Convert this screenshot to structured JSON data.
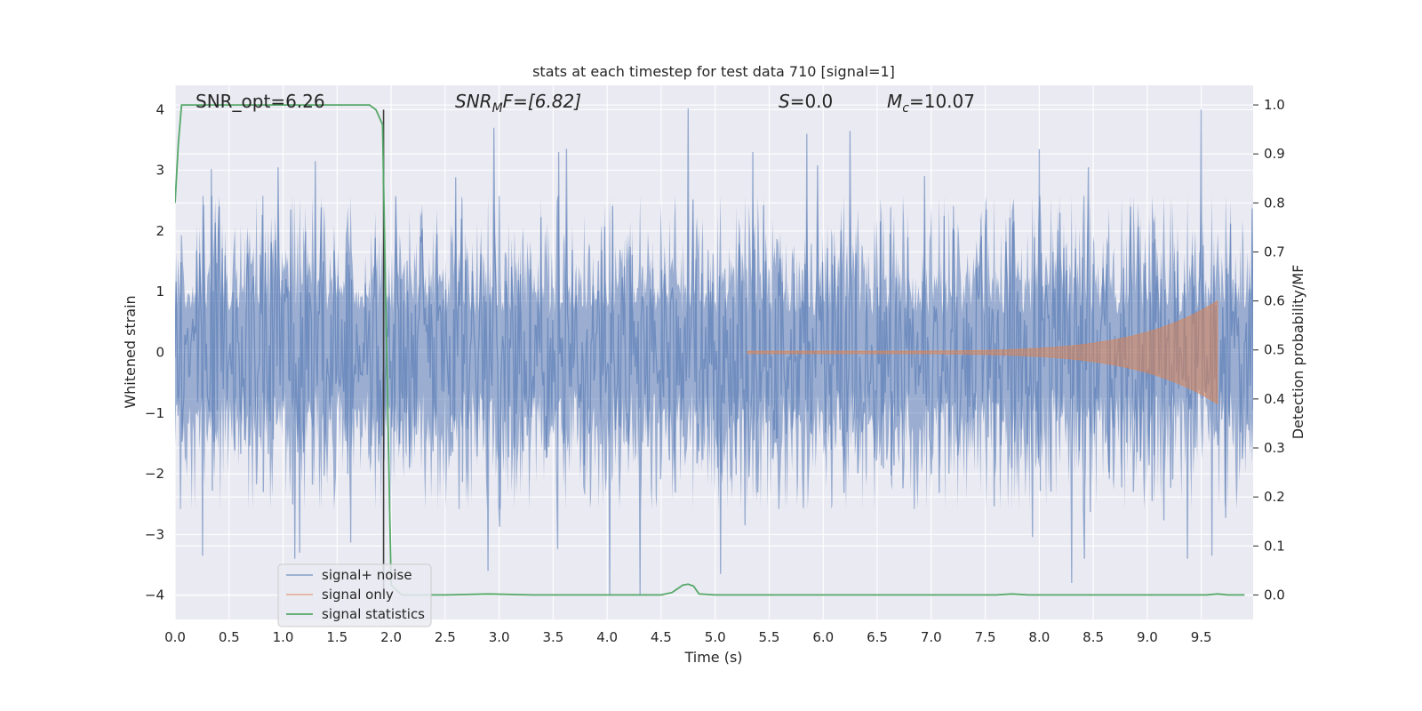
{
  "chart_data": {
    "type": "line",
    "title": "stats at each timestep for test data 710 [signal=1]",
    "xlabel": "Time (s)",
    "ylabel": "Whitened strain",
    "ylabel_right": "Detection probability/MF",
    "xlim": [
      0.0,
      9.98
    ],
    "ylim": [
      -4.4,
      4.4
    ],
    "ylim_right": [
      -0.05,
      1.04
    ],
    "x_ticks": [
      0.0,
      0.5,
      1.0,
      1.5,
      2.0,
      2.5,
      3.0,
      3.5,
      4.0,
      4.5,
      5.0,
      5.5,
      6.0,
      6.5,
      7.0,
      7.5,
      8.0,
      8.5,
      9.0,
      9.5
    ],
    "x_tick_labels": [
      "0.0",
      "0.5",
      "1.0",
      "1.5",
      "2.0",
      "2.5",
      "3.0",
      "3.5",
      "4.0",
      "4.5",
      "5.0",
      "5.5",
      "6.0",
      "6.5",
      "7.0",
      "7.5",
      "8.0",
      "8.5",
      "9.0",
      "9.5"
    ],
    "y_ticks": [
      -4,
      -3,
      -2,
      -1,
      0,
      1,
      2,
      3,
      4
    ],
    "y_tick_labels": [
      "−4",
      "−3",
      "−2",
      "−1",
      "0",
      "1",
      "2",
      "3",
      "4"
    ],
    "y_ticks_right": [
      0.0,
      0.1,
      0.2,
      0.3,
      0.4,
      0.5,
      0.6,
      0.7,
      0.8,
      0.9,
      1.0
    ],
    "y_tick_labels_right": [
      "0.0",
      "0.1",
      "0.2",
      "0.3",
      "0.4",
      "0.5",
      "0.6",
      "0.7",
      "0.8",
      "0.9",
      "1.0"
    ],
    "grid": true,
    "annotations": {
      "snr_opt": "SNR_opt=6.26",
      "snr_mf_sym": "SNR",
      "snr_mf_sub": "M",
      "snr_mf_rest": "F=[6.82]",
      "s_sym": "S",
      "s_rest": "=0.0",
      "mc_sym": "M",
      "mc_sub": "c",
      "mc_rest": "=10.07"
    },
    "vertical_marker_x": 1.93,
    "series": [
      {
        "name": "signal+ noise",
        "color": "#4c72b0",
        "kind": "noise",
        "envelope_peaks_top": [
          [
            0.95,
            3.05
          ],
          [
            1.3,
            3.15
          ],
          [
            2.95,
            3.7
          ],
          [
            3.55,
            3.3
          ],
          [
            4.75,
            4.02
          ],
          [
            5.35,
            3.3
          ],
          [
            5.85,
            3.6
          ],
          [
            6.25,
            3.65
          ],
          [
            8.0,
            3.35
          ],
          [
            8.45,
            3.05
          ],
          [
            9.5,
            4.0
          ]
        ],
        "envelope_peaks_bottom": [
          [
            0.25,
            -3.35
          ],
          [
            1.15,
            -3.3
          ],
          [
            2.9,
            -3.6
          ],
          [
            4.02,
            -4.0
          ],
          [
            4.3,
            -4.0
          ],
          [
            5.05,
            -3.65
          ],
          [
            8.3,
            -3.8
          ],
          [
            9.6,
            -3.35
          ]
        ]
      },
      {
        "name": "signal only",
        "color": "#dd8452",
        "kind": "chirp",
        "start": 5.3,
        "end": 9.65,
        "peak_amplitude": 0.85,
        "base_amplitude": 0.02
      },
      {
        "name": "signal statistics",
        "color": "#55a868",
        "axis": "right",
        "x": [
          0.0,
          0.03,
          0.06,
          0.1,
          0.2,
          1.5,
          1.8,
          1.86,
          1.92,
          1.95,
          2.0,
          2.1,
          2.2,
          2.5,
          2.9,
          3.3,
          4.0,
          4.5,
          4.6,
          4.7,
          4.75,
          4.8,
          4.85,
          5.0,
          6.0,
          7.6,
          7.75,
          7.9,
          9.0,
          9.55,
          9.65,
          9.75,
          9.9
        ],
        "y": [
          0.8,
          0.92,
          1.0,
          1.0,
          1.0,
          1.0,
          1.0,
          0.99,
          0.96,
          0.6,
          0.02,
          0.0,
          0.0,
          0.0,
          0.002,
          0.0,
          0.0,
          0.0,
          0.005,
          0.02,
          0.022,
          0.018,
          0.002,
          0.0,
          0.0,
          0.0,
          0.002,
          0.0,
          0.0,
          0.0,
          0.002,
          0.0,
          0.0
        ]
      }
    ],
    "legend": {
      "placement": "lower-left",
      "entries": [
        "signal+ noise",
        "signal only",
        "signal statistics"
      ]
    }
  }
}
